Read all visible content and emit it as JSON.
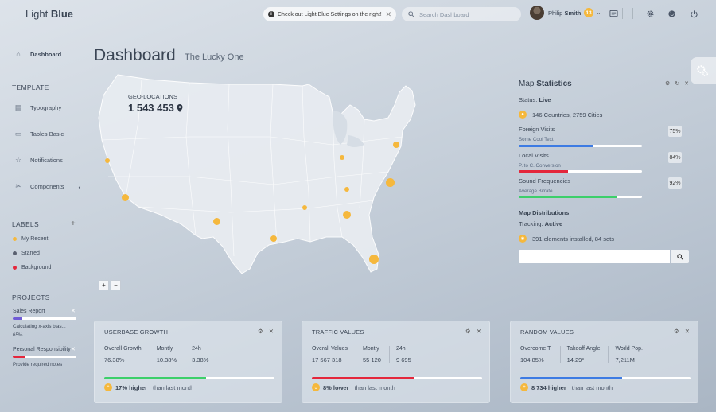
{
  "header": {
    "logo_light": "Light",
    "logo_blue": "Blue",
    "notice": "Check out Light Blue Settings on the right!",
    "search_placeholder": "Search Dashboard",
    "user_first": "Philip",
    "user_last": "Smith",
    "notification_count": "13"
  },
  "sidebar": {
    "dashboard": "Dashboard",
    "template_heading": "TEMPLATE",
    "items": [
      "Typography",
      "Tables Basic",
      "Notifications",
      "Components"
    ],
    "labels_heading": "LABELS",
    "labels": [
      {
        "name": "My Recent",
        "color": "#f5b83d"
      },
      {
        "name": "Starred",
        "color": "#5a6070"
      },
      {
        "name": "Background",
        "color": "#e4273c"
      }
    ],
    "projects_heading": "PROJECTS",
    "projects": [
      {
        "title": "Sales Report",
        "progress": 0.15,
        "color": "#6f5bd6",
        "note": "Calculating x-axis bias...",
        "value": "65%"
      },
      {
        "title": "Personal Responsibility",
        "progress": 0.2,
        "color": "#e4273c",
        "note": "Provide required notes"
      }
    ]
  },
  "page": {
    "title": "Dashboard",
    "subtitle": "The Lucky One"
  },
  "map": {
    "geo_label": "GEO-LOCATIONS",
    "geo_count": "1 543 453",
    "zoom_in": "+",
    "zoom_out": "−"
  },
  "map_stats": {
    "title_light": "Map",
    "title_bold": "Statistics",
    "status_label": "Status:",
    "status_value": "Live",
    "countries": "146 Countries, 2759 Cities",
    "rows": [
      {
        "label": "Foreign Visits",
        "sub": "Some Cool Text",
        "pct": "75%",
        "fill": 0.6,
        "color": "#3d7be3"
      },
      {
        "label": "Local Visits",
        "sub": "P. to C. Conversion",
        "pct": "84%",
        "fill": 0.4,
        "color": "#e4273c"
      },
      {
        "label": "Sound Frequencies",
        "sub": "Average Bitrate",
        "pct": "92%",
        "fill": 0.8,
        "color": "#3ccf6a"
      }
    ],
    "dist_title": "Map Distributions",
    "tracking_label": "Tracking:",
    "tracking_value": "Active",
    "installed": "391 elements installed, 84 sets"
  },
  "widgets": [
    {
      "title": "USERBASE GROWTH",
      "cols": [
        {
          "label": "Overall Growth",
          "value": "76.38%"
        },
        {
          "label": "Montly",
          "value": "10.38%"
        },
        {
          "label": "24h",
          "value": "3.38%"
        }
      ],
      "fill": 0.6,
      "color": "#3ccf6a",
      "foot_bold": "17% higher",
      "foot_rest": "than last month",
      "arrow": "up"
    },
    {
      "title": "TRAFFIC VALUES",
      "cols": [
        {
          "label": "Overall Values",
          "value": "17 567 318"
        },
        {
          "label": "Montly",
          "value": "55 120"
        },
        {
          "label": "24h",
          "value": "9 695"
        }
      ],
      "fill": 0.6,
      "color": "#e4273c",
      "foot_bold": "8% lower",
      "foot_rest": "than last month",
      "arrow": "down"
    },
    {
      "title": "RANDOM VALUES",
      "cols": [
        {
          "label": "Overcome T.",
          "value": "104.85%"
        },
        {
          "label": "Takeoff Angle",
          "value": "14.29°"
        },
        {
          "label": "World Pop.",
          "value": "7,211M"
        }
      ],
      "fill": 0.6,
      "color": "#3d7be3",
      "foot_bold": "8 734 higher",
      "foot_rest": "than last month",
      "arrow": "plus"
    }
  ]
}
